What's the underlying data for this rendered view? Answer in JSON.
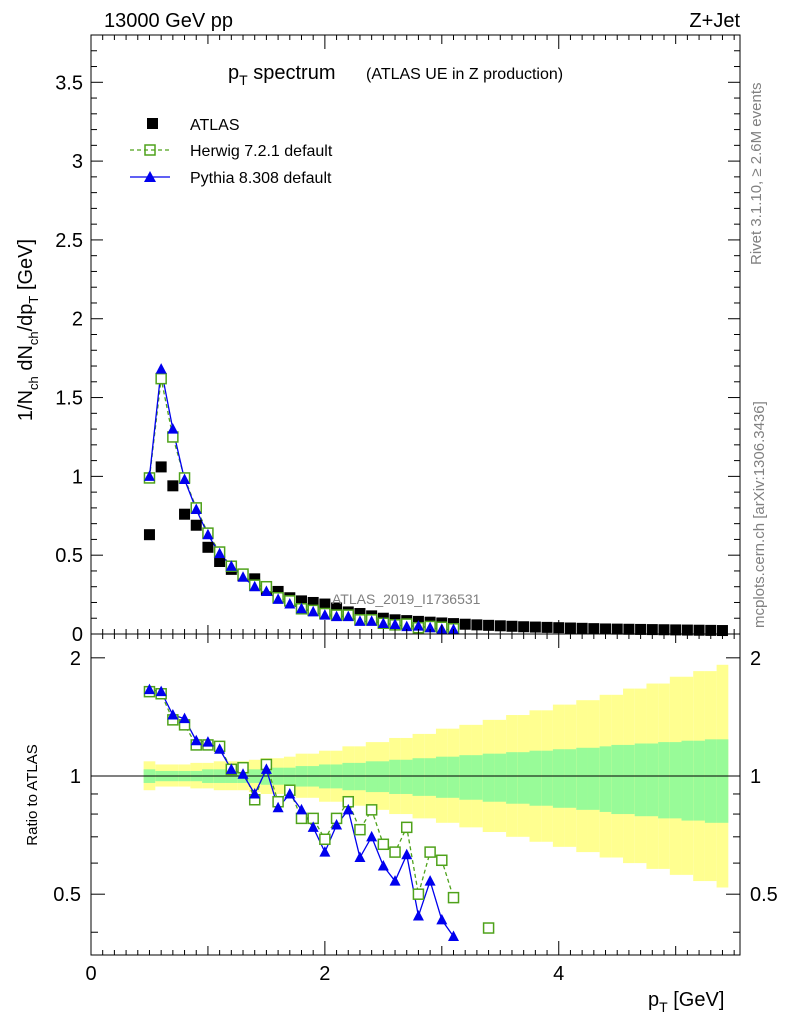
{
  "header": {
    "left": "13000 GeV pp",
    "right": "Z+Jet"
  },
  "title": {
    "main": "p",
    "main_sub": "T",
    "main_rest": " spectrum",
    "paren": "(ATLAS UE in Z production)"
  },
  "side_labels": {
    "rivet": "Rivet 3.1.10, ≥ 2.6M events",
    "mcplots": "mcplots.cern.ch [arXiv:1306.3436]"
  },
  "watermark": "ATLAS_2019_I1736531",
  "axes": {
    "ylabel_main": "1/N_ch dN_ch/dp_T [GeV]",
    "ylabel_main_parts": {
      "p1": "1/N",
      "s1": "ch",
      "p2": " dN",
      "s2": "ch",
      "p3": "/dp",
      "s3": "T",
      "p4": " [GeV]"
    },
    "ylabel_ratio": "Ratio to ATLAS",
    "xlabel_main": "p",
    "xlabel_sub": "T",
    "xlabel_unit": " [GeV]",
    "main_yticks": [
      "0",
      "0.5",
      "1",
      "1.5",
      "2",
      "2.5",
      "3",
      "3.5"
    ],
    "ratio_yticks": [
      "0.5",
      "1",
      "2"
    ],
    "xticks": [
      "0",
      "2",
      "4"
    ]
  },
  "legend": [
    {
      "label": "ATLAS",
      "color": "#000000",
      "marker": "filled-square"
    },
    {
      "label": "Herwig 7.2.1 default",
      "color": "#4fa21b",
      "marker": "open-square",
      "dashed": true
    },
    {
      "label": "Pythia 8.308 default",
      "color": "#0000ee",
      "marker": "filled-triangle"
    }
  ],
  "chart_data": [
    {
      "type": "scatter",
      "panel": "main",
      "xlabel": "p_T [GeV]",
      "ylabel": "1/N_ch dN_ch/dp_T [GeV]",
      "xlim": [
        0,
        5.55
      ],
      "ylim": [
        0,
        3.8
      ],
      "x": [
        0.5,
        0.6,
        0.7,
        0.8,
        0.9,
        1.0,
        1.1,
        1.2,
        1.3,
        1.4,
        1.5,
        1.6,
        1.7,
        1.8,
        1.9,
        2.0,
        2.1,
        2.2,
        2.3,
        2.4,
        2.5,
        2.6,
        2.7,
        2.8,
        2.9,
        3.0,
        3.1,
        3.2,
        3.3,
        3.4,
        3.5,
        3.6,
        3.7,
        3.8,
        3.9,
        4.0,
        4.1,
        4.2,
        4.3,
        4.4,
        4.5,
        4.6,
        4.7,
        4.8,
        4.9,
        5.0,
        5.1,
        5.2,
        5.3,
        5.4
      ],
      "series": [
        {
          "name": "ATLAS",
          "values": [
            0.63,
            1.06,
            0.94,
            0.76,
            0.69,
            0.55,
            0.46,
            0.41,
            0.37,
            0.35,
            0.28,
            0.27,
            0.23,
            0.21,
            0.2,
            0.19,
            0.165,
            0.14,
            0.13,
            0.115,
            0.1,
            0.09,
            0.085,
            0.08,
            0.075,
            0.07,
            0.066,
            0.062,
            0.058,
            0.055,
            0.052,
            0.049,
            0.046,
            0.044,
            0.042,
            0.04,
            0.038,
            0.036,
            0.034,
            0.032,
            0.031,
            0.03,
            0.029,
            0.028,
            0.027,
            0.026,
            0.025,
            0.024,
            0.023,
            0.022
          ]
        },
        {
          "name": "Herwig 7.2.1 default",
          "values": [
            0.99,
            1.62,
            1.25,
            0.99,
            0.8,
            0.64,
            0.52,
            0.43,
            0.38,
            0.31,
            0.3,
            0.23,
            0.21,
            0.16,
            0.15,
            0.13,
            0.12,
            0.12,
            0.09,
            0.09,
            0.068,
            0.058,
            0.063,
            0.04,
            0.048,
            0.043,
            0.033
          ]
        },
        {
          "name": "Pythia 8.308 default",
          "values": [
            1.0,
            1.68,
            1.3,
            0.98,
            0.79,
            0.63,
            0.51,
            0.43,
            0.36,
            0.3,
            0.27,
            0.22,
            0.19,
            0.16,
            0.14,
            0.12,
            0.11,
            0.11,
            0.08,
            0.08,
            0.067,
            0.06,
            0.047,
            0.05,
            0.04,
            0.03,
            0.028
          ]
        }
      ]
    },
    {
      "type": "scatter",
      "panel": "ratio",
      "xlabel": "p_T [GeV]",
      "ylabel": "Ratio to ATLAS",
      "xlim": [
        0,
        5.55
      ],
      "ylim": [
        0.35,
        2.3
      ],
      "yscale": "log",
      "x": [
        0.5,
        0.6,
        0.7,
        0.8,
        0.9,
        1.0,
        1.1,
        1.2,
        1.3,
        1.4,
        1.5,
        1.6,
        1.7,
        1.8,
        1.9,
        2.0,
        2.1,
        2.2,
        2.3,
        2.4,
        2.5,
        2.6,
        2.7,
        2.8,
        2.9,
        3.0,
        3.1,
        3.2,
        3.3,
        3.4
      ],
      "series": [
        {
          "name": "Herwig 7.2.1 default",
          "values": [
            1.64,
            1.62,
            1.39,
            1.35,
            1.2,
            1.2,
            1.19,
            1.04,
            1.05,
            0.87,
            1.07,
            0.86,
            0.92,
            0.78,
            0.78,
            0.69,
            0.78,
            0.86,
            0.73,
            0.82,
            0.67,
            0.64,
            0.74,
            0.5,
            0.64,
            0.61,
            0.49,
            null,
            null,
            0.41
          ]
        },
        {
          "name": "Pythia 8.308 default",
          "values": [
            1.66,
            1.64,
            1.43,
            1.4,
            1.23,
            1.22,
            1.17,
            1.04,
            1.01,
            0.9,
            1.04,
            0.83,
            0.9,
            0.82,
            0.74,
            0.64,
            0.75,
            0.82,
            0.62,
            0.7,
            0.59,
            0.54,
            0.63,
            0.44,
            0.54,
            0.43,
            0.39
          ]
        }
      ],
      "bands": {
        "x_edges": [
          0.45,
          0.55,
          0.65,
          0.75,
          0.85,
          0.95,
          1.05,
          1.15,
          1.25,
          1.35,
          1.45,
          1.55,
          1.65,
          1.75,
          1.85,
          1.95,
          2.05,
          2.15,
          2.25,
          2.35,
          2.45,
          2.55,
          2.65,
          2.75,
          2.85,
          2.95,
          3.05,
          3.15,
          3.25,
          3.35,
          3.45,
          3.55,
          3.65,
          3.75,
          3.85,
          3.95,
          4.05,
          4.15,
          4.25,
          4.35,
          4.45,
          4.55,
          4.65,
          4.75,
          4.85,
          4.95,
          5.05,
          5.15,
          5.25,
          5.35,
          5.45
        ],
        "stat_lo": [
          0.96,
          0.97,
          0.97,
          0.97,
          0.97,
          0.96,
          0.96,
          0.96,
          0.96,
          0.96,
          0.95,
          0.95,
          0.95,
          0.94,
          0.94,
          0.93,
          0.93,
          0.92,
          0.92,
          0.91,
          0.91,
          0.9,
          0.9,
          0.89,
          0.89,
          0.88,
          0.88,
          0.87,
          0.87,
          0.86,
          0.86,
          0.85,
          0.85,
          0.84,
          0.84,
          0.83,
          0.83,
          0.82,
          0.82,
          0.81,
          0.8,
          0.8,
          0.79,
          0.79,
          0.78,
          0.78,
          0.77,
          0.77,
          0.76,
          0.76
        ],
        "stat_hi": [
          1.04,
          1.03,
          1.03,
          1.03,
          1.03,
          1.04,
          1.04,
          1.04,
          1.04,
          1.04,
          1.05,
          1.05,
          1.05,
          1.06,
          1.06,
          1.07,
          1.07,
          1.08,
          1.08,
          1.09,
          1.09,
          1.1,
          1.1,
          1.11,
          1.11,
          1.12,
          1.12,
          1.13,
          1.13,
          1.14,
          1.14,
          1.15,
          1.15,
          1.16,
          1.16,
          1.17,
          1.17,
          1.18,
          1.18,
          1.19,
          1.2,
          1.2,
          1.21,
          1.21,
          1.22,
          1.22,
          1.23,
          1.23,
          1.24,
          1.24
        ],
        "tot_lo": [
          0.92,
          0.94,
          0.94,
          0.94,
          0.93,
          0.93,
          0.92,
          0.92,
          0.92,
          0.91,
          0.9,
          0.9,
          0.89,
          0.88,
          0.88,
          0.86,
          0.86,
          0.84,
          0.84,
          0.82,
          0.82,
          0.8,
          0.8,
          0.78,
          0.78,
          0.76,
          0.76,
          0.74,
          0.74,
          0.72,
          0.72,
          0.7,
          0.7,
          0.68,
          0.68,
          0.66,
          0.66,
          0.64,
          0.64,
          0.62,
          0.62,
          0.6,
          0.6,
          0.58,
          0.58,
          0.56,
          0.56,
          0.54,
          0.54,
          0.52
        ],
        "tot_hi": [
          1.09,
          1.07,
          1.07,
          1.07,
          1.08,
          1.08,
          1.09,
          1.09,
          1.09,
          1.1,
          1.11,
          1.11,
          1.12,
          1.14,
          1.14,
          1.16,
          1.16,
          1.19,
          1.19,
          1.22,
          1.22,
          1.25,
          1.25,
          1.28,
          1.28,
          1.32,
          1.32,
          1.35,
          1.35,
          1.39,
          1.39,
          1.43,
          1.43,
          1.47,
          1.47,
          1.52,
          1.52,
          1.56,
          1.56,
          1.61,
          1.61,
          1.67,
          1.67,
          1.72,
          1.72,
          1.79,
          1.79,
          1.85,
          1.85,
          1.92
        ]
      }
    }
  ],
  "colors": {
    "data": "#000000",
    "herwig": "#4fa21b",
    "pythia": "#0000ee",
    "stat_band": "#98fb98",
    "total_band": "#ffff90",
    "side_text": "#808080"
  }
}
